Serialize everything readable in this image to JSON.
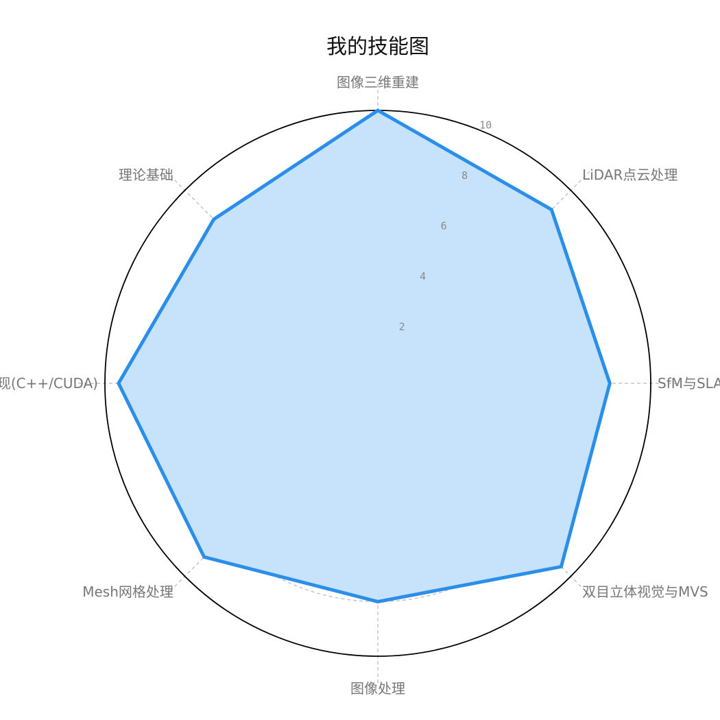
{
  "chart_data": {
    "type": "radar",
    "title": "我的技能图",
    "categories": [
      "图像三维重建",
      "LiDAR点云处理",
      "SfM与SLAM",
      "双目立体视觉与MVS",
      "图像处理",
      "Mesh网格处理",
      "工程实现(C++/CUDA)",
      "理论基础"
    ],
    "series": [
      {
        "values": [
          10,
          9,
          8.5,
          9.5,
          8,
          9,
          9.5,
          8.5
        ]
      }
    ],
    "rlim": [
      0,
      10
    ],
    "r_ticks": [
      "2",
      "4",
      "6",
      "8",
      "10"
    ],
    "grid": true,
    "colors": {
      "line": "#2b8ee8",
      "fill": "#c7e3fb",
      "grid": "#b8b8b8",
      "frame": "#000000"
    }
  }
}
